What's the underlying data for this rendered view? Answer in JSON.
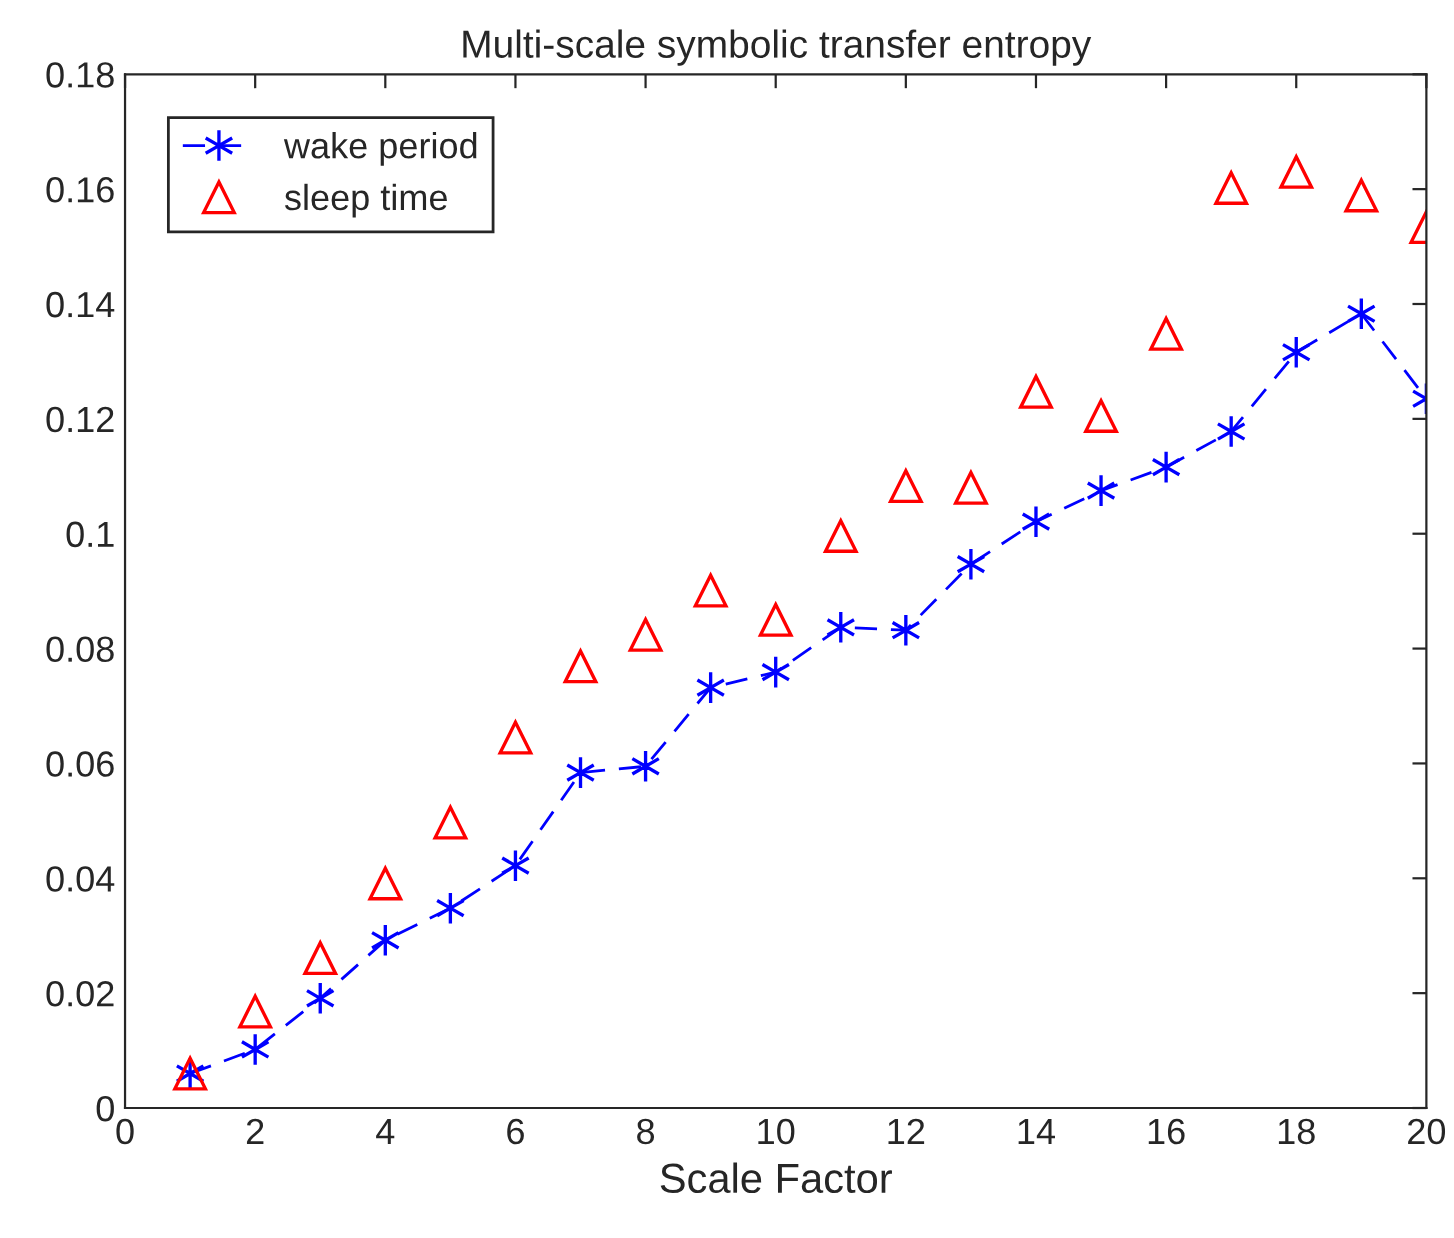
{
  "chart_data": {
    "type": "line",
    "title": "Multi-scale symbolic transfer entropy",
    "xlabel": "Scale Factor",
    "x": [
      1,
      2,
      3,
      4,
      5,
      6,
      7,
      8,
      9,
      10,
      11,
      12,
      13,
      14,
      15,
      16,
      17,
      18,
      19,
      20
    ],
    "series": [
      {
        "name": "wake period",
        "color": "#0000ff",
        "marker": "cross",
        "line_style": "dashed",
        "values": [
          0.006,
          0.0102,
          0.0191,
          0.0292,
          0.0348,
          0.0422,
          0.0584,
          0.0595,
          0.0732,
          0.0759,
          0.0837,
          0.0832,
          0.0947,
          0.1021,
          0.1075,
          0.1116,
          0.1178,
          0.1316,
          0.1383,
          0.1235
        ]
      },
      {
        "name": "sleep time",
        "type": "scatter",
        "color": "#ff0000",
        "marker": "triangle",
        "values": [
          0.006,
          0.0168,
          0.0261,
          0.0391,
          0.0497,
          0.0645,
          0.0769,
          0.0824,
          0.0901,
          0.085,
          0.0996,
          0.1083,
          0.108,
          0.1247,
          0.1205,
          0.1348,
          0.1602,
          0.163,
          0.1589,
          0.1534
        ]
      }
    ],
    "xlim": [
      0,
      20
    ],
    "xticks": [
      0,
      2,
      4,
      6,
      8,
      10,
      12,
      14,
      16,
      18,
      20
    ],
    "ylim": [
      0,
      0.18
    ],
    "yticks": [
      0,
      0.02,
      0.04,
      0.06,
      0.08,
      0.1,
      0.12,
      0.14,
      0.16,
      0.18
    ],
    "grid": false,
    "legend": "top left"
  }
}
